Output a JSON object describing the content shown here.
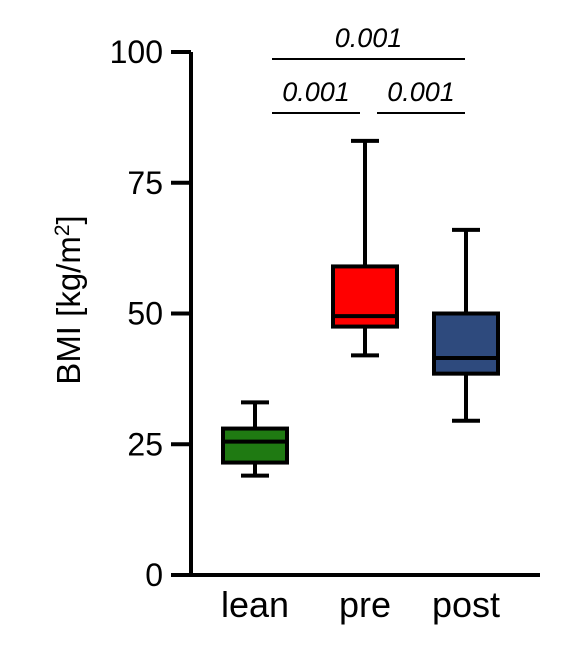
{
  "chart_data": {
    "type": "boxplot",
    "ylabel": "BMI [kg/m²]",
    "ylabel_base": "BMI [kg/m",
    "ylabel_sup": "2",
    "ylabel_tail": "]",
    "ylim": [
      0,
      100
    ],
    "yticks": [
      0,
      25,
      50,
      75,
      100
    ],
    "categories": [
      "lean",
      "pre",
      "post"
    ],
    "boxes": [
      {
        "category": "lean",
        "color": "#1f7a12",
        "min": 19,
        "q1": 21.5,
        "median": 25.5,
        "q3": 28,
        "max": 33
      },
      {
        "category": "pre",
        "color": "#ff0000",
        "min": 42,
        "q1": 47.5,
        "median": 49.5,
        "q3": 59,
        "max": 83
      },
      {
        "category": "post",
        "color": "#2e4a7d",
        "min": 29.5,
        "q1": 38.5,
        "median": 41.5,
        "q3": 50,
        "max": 66
      }
    ],
    "significance": [
      {
        "from": "lean",
        "to": "post",
        "p": "0.001",
        "level": 2
      },
      {
        "from": "lean",
        "to": "pre",
        "p": "0.001",
        "level": 1
      },
      {
        "from": "pre",
        "to": "post",
        "p": "0.001",
        "level": 1
      }
    ]
  }
}
